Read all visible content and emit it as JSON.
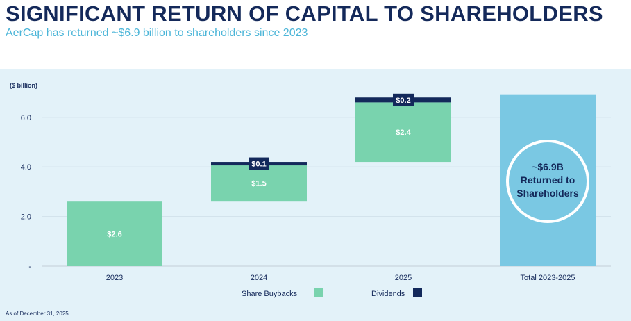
{
  "header": {
    "title": "SIGNIFICANT RETURN OF CAPITAL TO SHAREHOLDERS",
    "subtitle": "AerCap has returned ~$6.9 billion to shareholders since 2023"
  },
  "footnote": "As of December 31, 2025.",
  "colors": {
    "buybacks": "#79d3ae",
    "dividends": "#13295b",
    "total": "#7ac8e3",
    "text": "#14295a"
  },
  "chart_data": {
    "type": "bar",
    "subtype": "waterfall",
    "ylabel": "($ billion)",
    "ylim": [
      0,
      7
    ],
    "yticks": [
      {
        "v": 0,
        "label": "-"
      },
      {
        "v": 2,
        "label": "2.0"
      },
      {
        "v": 4,
        "label": "4.0"
      },
      {
        "v": 6,
        "label": "6.0"
      }
    ],
    "grid": true,
    "categories": [
      "2023",
      "2024",
      "2025",
      "Total 2023-2025"
    ],
    "series": [
      {
        "name": "Share Buybacks",
        "values": [
          2.6,
          1.5,
          2.4,
          null
        ],
        "labels": [
          "$2.6",
          "$1.5",
          "$2.4",
          null
        ]
      },
      {
        "name": "Dividends",
        "values": [
          0,
          0.1,
          0.2,
          null
        ],
        "labels": [
          null,
          "$0.1",
          "$0.2",
          null
        ]
      }
    ],
    "bases": [
      0,
      2.6,
      4.2,
      0
    ],
    "total": {
      "value": 6.9,
      "callout": [
        "~$6.9B",
        "Returned to",
        "Shareholders"
      ]
    },
    "legend": {
      "position": "bottom",
      "items": [
        "Share Buybacks",
        "Dividends"
      ]
    }
  }
}
